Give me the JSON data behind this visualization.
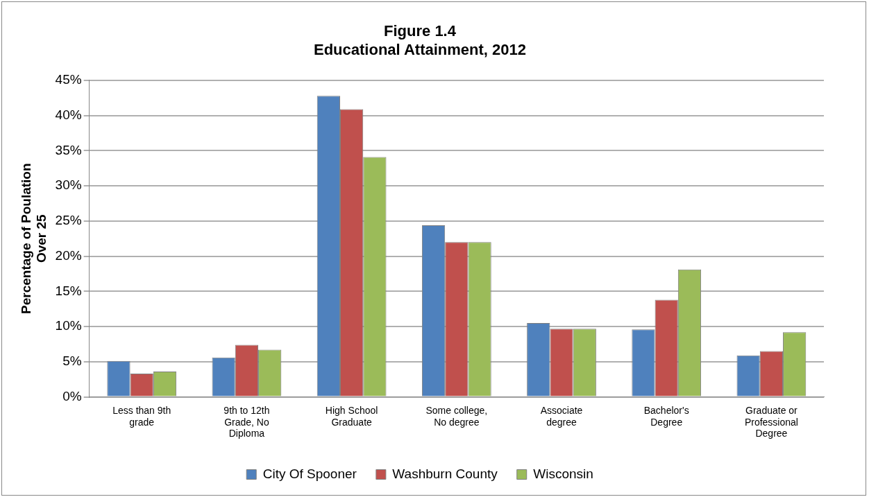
{
  "chart_data": {
    "type": "bar",
    "title": "Figure 1.4\nEducational Attainment, 2012",
    "ylabel": "Percentage of Poulation\nOver 25",
    "categories": [
      "Less than 9th\ngrade",
      "9th to 12th\nGrade, No\nDiploma",
      "High School\nGraduate",
      "Some college,\nNo degree",
      "Associate\ndegree",
      "Bachelor's\nDegree",
      "Graduate or\nProfessional\nDegree"
    ],
    "series": [
      {
        "name": "City Of Spooner",
        "color": "#4f81bd",
        "values": [
          5.1,
          5.6,
          42.8,
          24.4,
          10.5,
          9.6,
          5.9
        ]
      },
      {
        "name": "Washburn County",
        "color": "#c0504d",
        "values": [
          3.3,
          7.4,
          40.9,
          22.0,
          9.7,
          13.8,
          6.5
        ]
      },
      {
        "name": "Wisconsin",
        "color": "#9bbb59",
        "values": [
          3.6,
          6.7,
          34.1,
          22.0,
          9.7,
          18.1,
          9.2
        ]
      }
    ],
    "ylim": [
      0,
      45
    ],
    "yticks": [
      {
        "value": 0,
        "label": "0%"
      },
      {
        "value": 5,
        "label": "5%"
      },
      {
        "value": 10,
        "label": "10%"
      },
      {
        "value": 15,
        "label": "15%"
      },
      {
        "value": 20,
        "label": "20%"
      },
      {
        "value": 25,
        "label": "25%"
      },
      {
        "value": 30,
        "label": "30%"
      },
      {
        "value": 35,
        "label": "35%"
      },
      {
        "value": 40,
        "label": "40%"
      },
      {
        "value": 45,
        "label": "45%"
      }
    ],
    "grid": "y",
    "legend": "bottom"
  }
}
